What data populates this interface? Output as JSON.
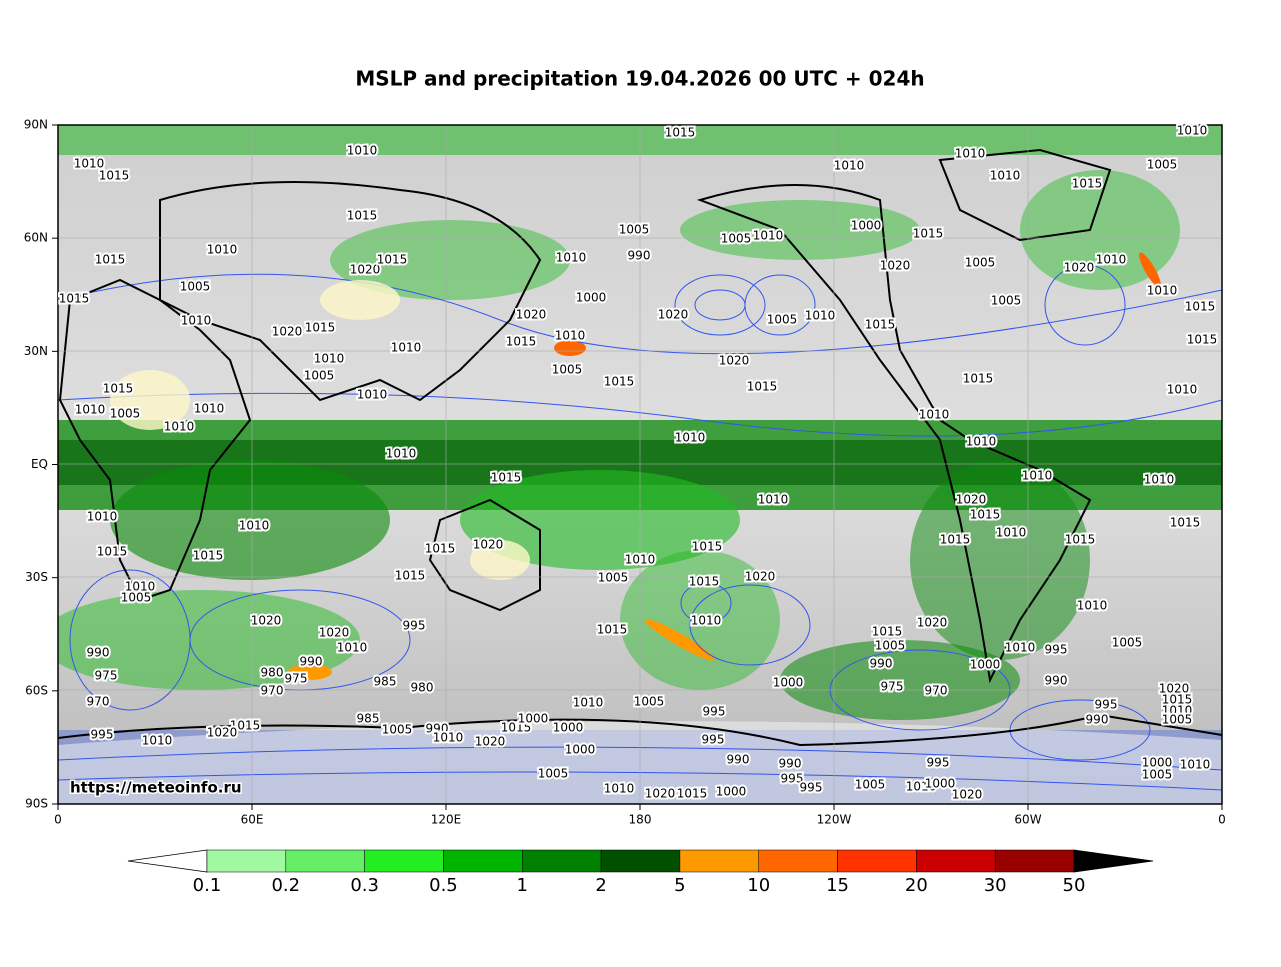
{
  "title": "MSLP and precipitation 19.04.2026 00 UTC + 024h",
  "map": {
    "lat_labels": [
      "90N",
      "60N",
      "30N",
      "EQ",
      "30S",
      "60S",
      "90S"
    ],
    "lon_labels": [
      "0",
      "60E",
      "120E",
      "180",
      "120W",
      "60W",
      "0"
    ],
    "watermark": "https://meteoinfo.ru",
    "isobar_labels": [
      "1015",
      "1010",
      "1010",
      "1010",
      "1015",
      "1010",
      "1010",
      "1005",
      "1010",
      "1015",
      "1015",
      "1010",
      "1015",
      "1020",
      "1015",
      "1005",
      "1015",
      "1010",
      "1020",
      "1015",
      "1010",
      "1010",
      "1005",
      "1010",
      "1015",
      "1010",
      "1005",
      "1010",
      "1010",
      "1010",
      "1010",
      "990",
      "1005",
      "1000",
      "1020",
      "1015",
      "1010",
      "1005",
      "1015",
      "1020",
      "1020",
      "1015",
      "1010",
      "1005",
      "1010",
      "1015",
      "1010",
      "1005",
      "1000",
      "1020",
      "1015",
      "1005",
      "1005",
      "1020",
      "1010",
      "1010",
      "1015",
      "1015",
      "1010",
      "1015",
      "1010",
      "1010",
      "1010",
      "1010",
      "1015",
      "1020",
      "1015",
      "1010",
      "1015",
      "1015",
      "1010",
      "1005",
      "995",
      "990",
      "1010",
      "1000",
      "995",
      "990",
      "1020",
      "1015",
      "1010",
      "1005",
      "1010",
      "1015",
      "1020",
      "1015",
      "1010",
      "1010",
      "1005",
      "1015",
      "1015",
      "1020",
      "1015",
      "1015",
      "995",
      "1020",
      "1010",
      "1020",
      "1010",
      "1015",
      "1010",
      "1015",
      "1010",
      "1005",
      "990",
      "975",
      "970",
      "980",
      "970",
      "975",
      "990",
      "985",
      "980",
      "1015",
      "1020",
      "995",
      "1010",
      "985",
      "1005",
      "990",
      "1010",
      "1020",
      "1015",
      "1000",
      "1000",
      "1000",
      "1005",
      "1010",
      "1005",
      "995",
      "995",
      "990",
      "1000",
      "1015",
      "1005",
      "1020",
      "990",
      "975",
      "970",
      "990",
      "995",
      "995",
      "1005",
      "1010",
      "1000",
      "995",
      "1020",
      "1010",
      "1020",
      "1015",
      "1000",
      "1000",
      "1005",
      "1010"
    ]
  },
  "colorbar": {
    "labels": [
      "0.1",
      "0.2",
      "0.3",
      "0.5",
      "1",
      "2",
      "5",
      "10",
      "15",
      "20",
      "30",
      "50"
    ],
    "colors": [
      "#a0f8a0",
      "#66ee66",
      "#22ee22",
      "#00b400",
      "#008000",
      "#005000",
      "#ff9900",
      "#ff6600",
      "#ff3300",
      "#cc0000",
      "#990000"
    ],
    "under_color": "#ffffff",
    "over_color": "#000000"
  }
}
